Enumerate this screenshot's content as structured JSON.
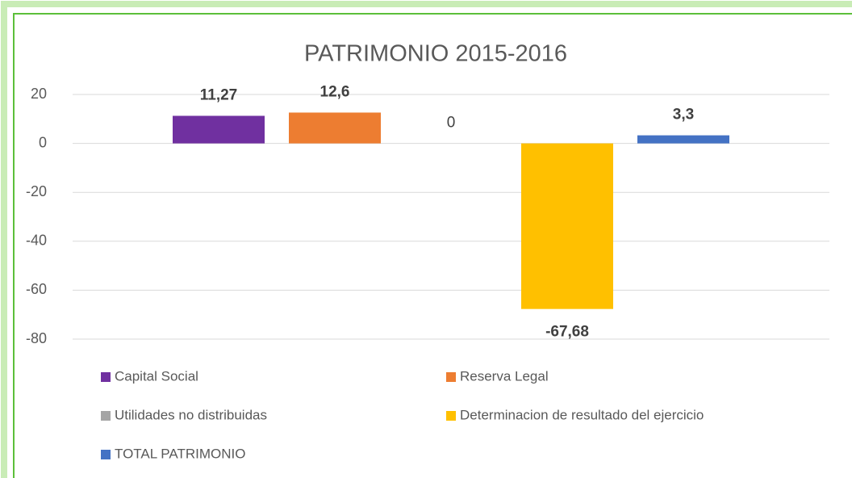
{
  "chart_data": {
    "type": "bar",
    "title": "PATRIMONIO 2015-2016",
    "categories": [
      null
    ],
    "series": [
      {
        "name": "Capital Social",
        "color": "#7030a0",
        "values": [
          11.27
        ],
        "value_labels": [
          "11,27"
        ]
      },
      {
        "name": "Reserva Legal",
        "color": "#ed7d31",
        "values": [
          12.6
        ],
        "value_labels": [
          "12,6"
        ]
      },
      {
        "name": "Utilidades no distribuidas",
        "color": "#a5a5a5",
        "values": [
          0
        ]
      },
      {
        "name": "Determinacion de resultado del ejercicio",
        "color": "#ffc000",
        "values": [
          -67.68
        ],
        "value_labels": [
          "-67,68"
        ]
      },
      {
        "name": "TOTAL PATRIMONIO",
        "color": "#4472c4",
        "values": [
          3.3
        ],
        "value_labels": [
          "3,3"
        ]
      }
    ],
    "ylim": [
      -80,
      20
    ],
    "yticks": [
      -80,
      -60,
      -40,
      -20,
      0,
      20
    ],
    "grid": true,
    "legend": "bottom"
  }
}
